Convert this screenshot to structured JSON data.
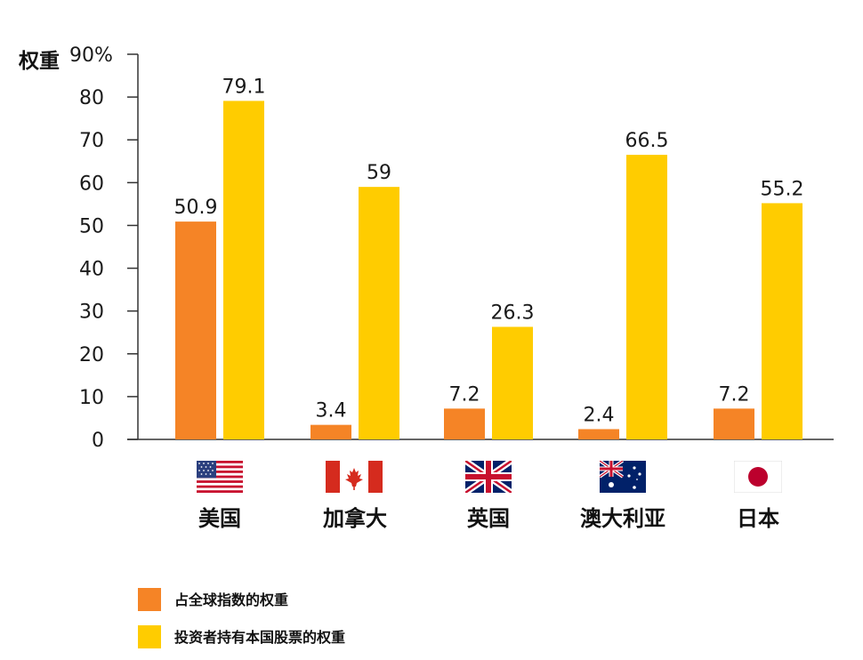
{
  "colors": {
    "index_weight": "#F58426",
    "domestic_weight": "#FFCC00",
    "axis": "#333333"
  },
  "chart_data": {
    "type": "bar",
    "ylabel": "权重",
    "ylim": [
      0,
      90
    ],
    "yticks": [
      "90%",
      "80",
      "70",
      "60",
      "50",
      "40",
      "30",
      "20",
      "10",
      "0"
    ],
    "categories": [
      "美国",
      "加拿大",
      "英国",
      "澳大利亚",
      "日本"
    ],
    "flags": [
      "us-flag-icon",
      "canada-flag-icon",
      "uk-flag-icon",
      "australia-flag-icon",
      "japan-flag-icon"
    ],
    "series": [
      {
        "name": "占全球指数的权重",
        "values": [
          50.9,
          3.4,
          7.2,
          2.4,
          7.2
        ],
        "labels": [
          "50.9",
          "3.4",
          "7.2",
          "2.4",
          "7.2"
        ]
      },
      {
        "name": "投资者持有本国股票的权重",
        "values": [
          79.1,
          59,
          26.3,
          66.5,
          55.2
        ],
        "labels": [
          "79.1",
          "59",
          "26.3",
          "66.5",
          "55.2"
        ]
      }
    ],
    "legend_position": "bottom-left",
    "grid": false
  }
}
